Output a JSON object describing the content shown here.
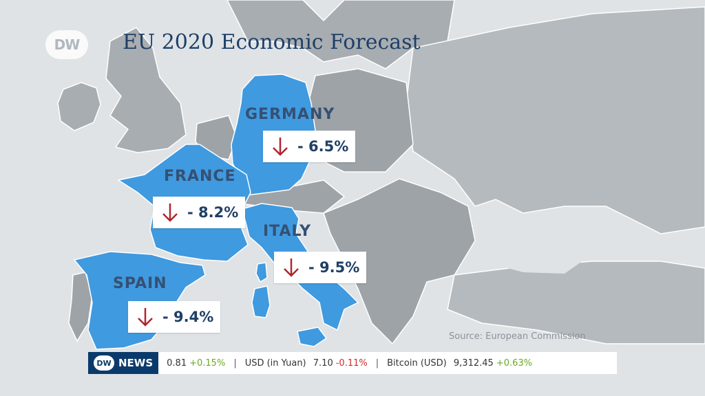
{
  "logo": {
    "text": "DW"
  },
  "title": "EU 2020 Economic Forecast",
  "colors": {
    "highlight": "#3f9ae0",
    "land": "#a8adb1",
    "land_dark": "#8f9498",
    "sea": "#dfe3e6",
    "arrow": "#b0242c",
    "text": "#1f3f66"
  },
  "countries": [
    {
      "name": "GERMANY",
      "value": "- 6.5%",
      "icon": "arrow-down-icon"
    },
    {
      "name": "FRANCE",
      "value": "- 8.2%",
      "icon": "arrow-down-icon"
    },
    {
      "name": "ITALY",
      "value": "- 9.5%",
      "icon": "arrow-down-icon"
    },
    {
      "name": "SPAIN",
      "value": "- 9.4%",
      "icon": "arrow-down-icon"
    }
  ],
  "source": "Source: European Commission",
  "ticker": {
    "logo": "DW",
    "label": "NEWS",
    "items": [
      {
        "value": "0.81",
        "change": "+0.15%"
      },
      {
        "name": "USD (in Yuan)",
        "value": "7.10",
        "change": "-0.11%"
      },
      {
        "name": "Bitcoin (USD)",
        "value": "9,312.45",
        "change": "+0.63%"
      }
    ]
  }
}
